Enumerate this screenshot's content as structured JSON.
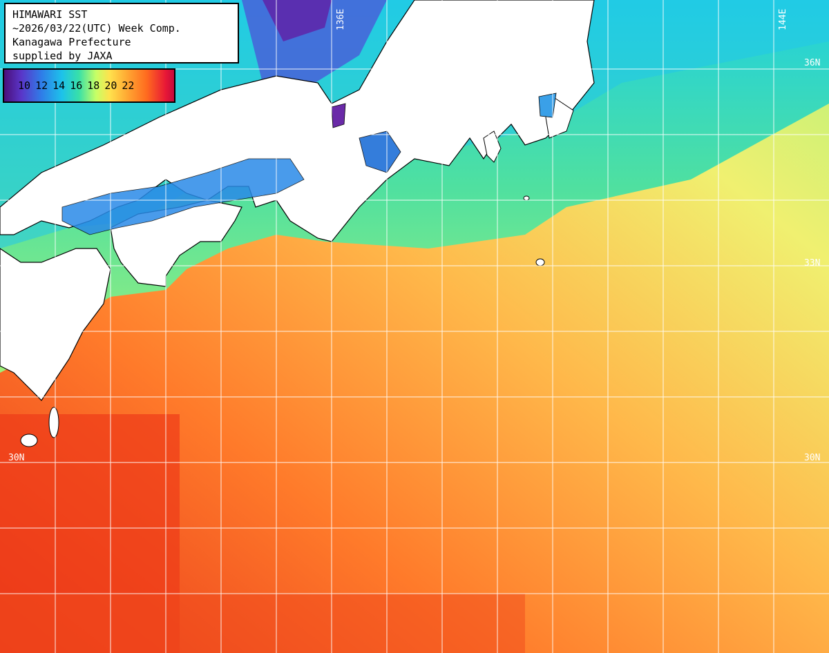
{
  "header": {
    "line1": "HIMAWARI SST",
    "line2": "~2026/03/22(UTC) Week Comp.",
    "line3": "Kanagawa Prefecture",
    "line4": "supplied by JAXA"
  },
  "legend": {
    "labels": [
      "10",
      "12",
      "14",
      "16",
      "18",
      "20",
      "22"
    ]
  },
  "grid_labels": {
    "lon_136": "136E",
    "lon_144": "144E",
    "lat_36": "36N",
    "lat_33": "33N",
    "lat_30_left": "30N",
    "lat_30_right": "30N"
  },
  "colors": {
    "land": "#ffffff",
    "coast": "#000000",
    "grid": "#ffffff",
    "warm": "#f2521a",
    "mid": "#ffb347",
    "cool": "#3ddc9c",
    "cold": "#1f8fe8"
  }
}
